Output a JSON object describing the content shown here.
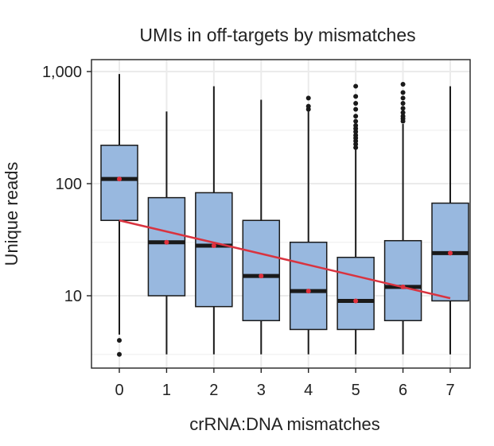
{
  "chart_data": {
    "type": "box",
    "title": "UMIs in off-targets by mismatches",
    "xlabel": "crRNA:DNA mismatches",
    "ylabel": "Unique reads",
    "y_scale": "log10",
    "ylim": [
      2.5,
      1300
    ],
    "y_ticks": [
      10,
      100,
      1000
    ],
    "y_tick_labels": [
      "10",
      "100",
      "1,000"
    ],
    "categories": [
      "0",
      "1",
      "2",
      "3",
      "4",
      "5",
      "6",
      "7"
    ],
    "boxes": [
      {
        "category": "0",
        "whisker_low": 4.5,
        "q1": 47,
        "median": 110,
        "q3": 220,
        "whisker_high": 950,
        "mean": 110,
        "outliers": [
          3,
          4
        ]
      },
      {
        "category": "1",
        "whisker_low": 3,
        "q1": 10,
        "median": 30,
        "q3": 75,
        "whisker_high": 440,
        "mean": 30,
        "outliers": []
      },
      {
        "category": "2",
        "whisker_low": 3,
        "q1": 8,
        "median": 28,
        "q3": 83,
        "whisker_high": 740,
        "mean": 28,
        "outliers": []
      },
      {
        "category": "3",
        "whisker_low": 3,
        "q1": 6,
        "median": 15,
        "q3": 47,
        "whisker_high": 560,
        "mean": 15,
        "outliers": []
      },
      {
        "category": "4",
        "whisker_low": 3,
        "q1": 5,
        "median": 11,
        "q3": 30,
        "whisker_high": 440,
        "mean": 11,
        "outliers": [
          460,
          490,
          580
        ]
      },
      {
        "category": "5",
        "whisker_low": 3,
        "q1": 5,
        "median": 9,
        "q3": 22,
        "whisker_high": 200,
        "mean": 9,
        "outliers": [
          210,
          225,
          240,
          255,
          270,
          290,
          310,
          330,
          360,
          400,
          460,
          520,
          600,
          740
        ]
      },
      {
        "category": "6",
        "whisker_low": 3,
        "q1": 6,
        "median": 12,
        "q3": 31,
        "whisker_high": 340,
        "mean": 12,
        "outliers": [
          360,
          380,
          400,
          430,
          470,
          520,
          580,
          650,
          770
        ]
      },
      {
        "category": "7",
        "whisker_low": 3,
        "q1": 9,
        "median": 24,
        "q3": 67,
        "whisker_high": 740,
        "mean": 24,
        "outliers": []
      }
    ],
    "trend_line": {
      "x_start": "0",
      "y_start": 47,
      "x_end": "7",
      "y_end": 9.5
    },
    "grid": true,
    "legend": "none",
    "colors": {
      "box_fill": "#98b8df",
      "box_stroke": "#1a1a1a",
      "median": "#1a1a1a",
      "mean_point": "#e0303c",
      "trend": "#d9333f",
      "outlier": "#1a1a1a",
      "grid": "#ebebeb"
    }
  }
}
